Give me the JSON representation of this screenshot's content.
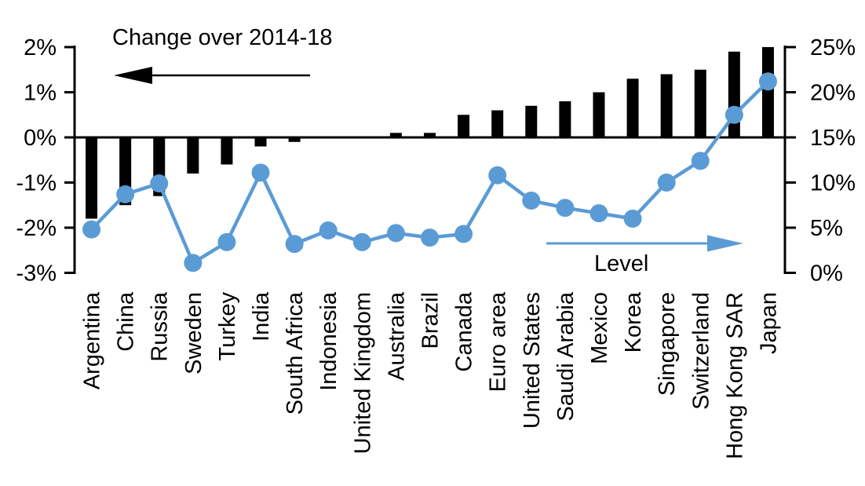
{
  "chart_data": {
    "type": "bar+line",
    "title": "",
    "grid": false,
    "legend_position": "none",
    "categories": [
      "Argentina",
      "China",
      "Russia",
      "Sweden",
      "Turkey",
      "India",
      "South Africa",
      "Indonesia",
      "United Kingdom",
      "Australia",
      "Brazil",
      "Canada",
      "Euro area",
      "United States",
      "Saudi Arabia",
      "Mexico",
      "Korea",
      "Singapore",
      "Switzerland",
      "Hong Kong SAR",
      "Japan"
    ],
    "series": [
      {
        "name": "Change over 2014-18",
        "type": "bar",
        "axis": "left",
        "color": "#000000",
        "values": [
          -1.8,
          -1.5,
          -1.3,
          -0.8,
          -0.6,
          -0.2,
          -0.1,
          0.0,
          0.0,
          0.1,
          0.1,
          0.5,
          0.6,
          0.7,
          0.8,
          1.0,
          1.3,
          1.4,
          1.5,
          1.9,
          2.0
        ]
      },
      {
        "name": "Level",
        "type": "line",
        "axis": "right",
        "color": "#5B9BD5",
        "values": [
          4.8,
          8.7,
          9.9,
          1.1,
          3.4,
          11.1,
          3.2,
          4.7,
          3.4,
          4.4,
          3.9,
          4.3,
          10.8,
          8.0,
          7.2,
          6.6,
          6.0,
          10.0,
          12.4,
          17.5,
          21.2
        ]
      }
    ],
    "left_axis": {
      "min": -3,
      "max": 2,
      "tick_step": 1,
      "tick_values": [
        2,
        1,
        0,
        -1,
        -2,
        -3
      ],
      "ticks": [
        "2%",
        "1%",
        "0%",
        "-1%",
        "-2%",
        "-3%"
      ]
    },
    "right_axis": {
      "min": 0,
      "max": 25,
      "tick_step": 5,
      "tick_values": [
        25,
        20,
        15,
        10,
        5,
        0
      ],
      "ticks": [
        "25%",
        "20%",
        "15%",
        "10%",
        "5%",
        "0%"
      ]
    },
    "annotations": {
      "change": {
        "text": "Change over 2014-18",
        "arrow_direction": "left",
        "arrow_color": "#000000"
      },
      "level": {
        "text": "Level",
        "arrow_direction": "right",
        "arrow_color": "#5B9BD5"
      }
    }
  }
}
